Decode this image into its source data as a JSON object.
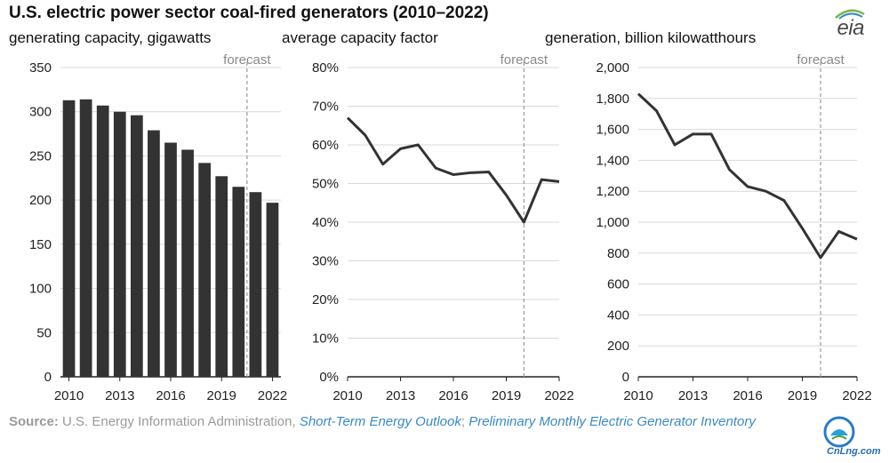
{
  "title": "U.S. electric power sector coal-fired generators (2010–2022)",
  "logo_text": "eia",
  "source": {
    "label": "Source:",
    "text": "U.S. Energy Information Administration,",
    "link1": "Short-Term Energy Outlook",
    "separator": ";",
    "link2": "Preliminary Monthly Electric Generator Inventory"
  },
  "watermark_text": "CnLng.com",
  "colors": {
    "series": "#333333",
    "forecast_line": "#999999",
    "link": "#3a8ac4"
  },
  "chart_data": [
    {
      "type": "bar",
      "title": "generating capacity, gigawatts",
      "categories": [
        2010,
        2011,
        2012,
        2013,
        2014,
        2015,
        2016,
        2017,
        2018,
        2019,
        2020,
        2021,
        2022
      ],
      "values": [
        313,
        314,
        307,
        300,
        296,
        279,
        265,
        257,
        242,
        227,
        215,
        209,
        197
      ],
      "x_tick_labels": [
        "2010",
        "2013",
        "2016",
        "2019",
        "2022"
      ],
      "ylim": [
        0,
        350
      ],
      "y_tick_labels": [
        "0",
        "50",
        "100",
        "150",
        "200",
        "250",
        "300",
        "350"
      ],
      "y_tick_values": [
        0,
        50,
        100,
        150,
        200,
        250,
        300,
        350
      ],
      "forecast_label": "forecast",
      "forecast_x": 2020.5,
      "grid": true
    },
    {
      "type": "line",
      "title": "average capacity factor",
      "x": [
        2010,
        2011,
        2012,
        2013,
        2014,
        2015,
        2016,
        2017,
        2018,
        2019,
        2020,
        2021,
        2022
      ],
      "values": [
        67,
        62.5,
        55,
        59,
        60,
        54,
        52.3,
        52.8,
        53,
        47,
        40,
        51,
        50.5
      ],
      "x_tick_labels": [
        "2010",
        "2013",
        "2016",
        "2019",
        "2022"
      ],
      "x_tick_values": [
        2010,
        2013,
        2016,
        2019,
        2022
      ],
      "ylim": [
        0,
        80
      ],
      "y_tick_labels": [
        "0%",
        "10%",
        "20%",
        "30%",
        "40%",
        "50%",
        "60%",
        "70%",
        "80%"
      ],
      "y_tick_values": [
        0,
        10,
        20,
        30,
        40,
        50,
        60,
        70,
        80
      ],
      "forecast_label": "forecast",
      "forecast_x": 2020,
      "grid": true
    },
    {
      "type": "line",
      "title": "generation, billion kilowatthours",
      "x": [
        2010,
        2011,
        2012,
        2013,
        2014,
        2015,
        2016,
        2017,
        2018,
        2019,
        2020,
        2021,
        2022
      ],
      "values": [
        1830,
        1720,
        1500,
        1570,
        1570,
        1340,
        1230,
        1200,
        1140,
        960,
        770,
        940,
        890
      ],
      "x_tick_labels": [
        "2010",
        "2013",
        "2016",
        "2019",
        "2022"
      ],
      "x_tick_values": [
        2010,
        2013,
        2016,
        2019,
        2022
      ],
      "ylim": [
        0,
        2000
      ],
      "y_tick_labels": [
        "0",
        "200",
        "400",
        "600",
        "800",
        "1,000",
        "1,200",
        "1,400",
        "1,600",
        "1,800",
        "2,000"
      ],
      "y_tick_values": [
        0,
        200,
        400,
        600,
        800,
        1000,
        1200,
        1400,
        1600,
        1800,
        2000
      ],
      "forecast_label": "forecast",
      "forecast_x": 2020,
      "grid": true
    }
  ]
}
